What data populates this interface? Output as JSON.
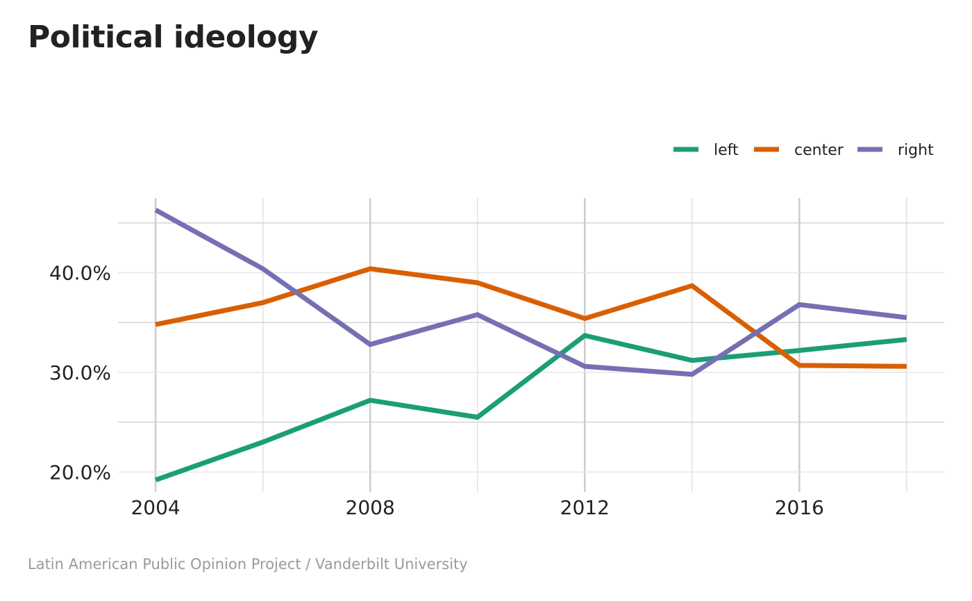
{
  "title": "Political ideology",
  "caption": "Latin American Public Opinion Project / Vanderbilt University",
  "chart_data": {
    "type": "line",
    "title": "Political ideology",
    "xlabel": "",
    "ylabel": "",
    "x": [
      2004,
      2006,
      2008,
      2010,
      2012,
      2014,
      2016,
      2018
    ],
    "x_ticks": [
      "2004",
      "2008",
      "2012",
      "2016"
    ],
    "y_ticks": [
      "20.0%",
      "30.0%",
      "40.0%"
    ],
    "xlim": [
      2003.3,
      2018.7
    ],
    "ylim": [
      0.18,
      0.475
    ],
    "grid": true,
    "legend": "top-right",
    "series": [
      {
        "name": "left",
        "color": "#1b9e77",
        "values": [
          0.192,
          0.23,
          0.272,
          0.255,
          0.337,
          0.312,
          0.322,
          0.333
        ]
      },
      {
        "name": "center",
        "color": "#d95f02",
        "values": [
          0.348,
          0.37,
          0.404,
          0.39,
          0.354,
          0.387,
          0.307,
          0.306
        ]
      },
      {
        "name": "right",
        "color": "#7570b3",
        "values": [
          0.463,
          0.404,
          0.328,
          0.358,
          0.306,
          0.298,
          0.368,
          0.355
        ]
      }
    ]
  }
}
